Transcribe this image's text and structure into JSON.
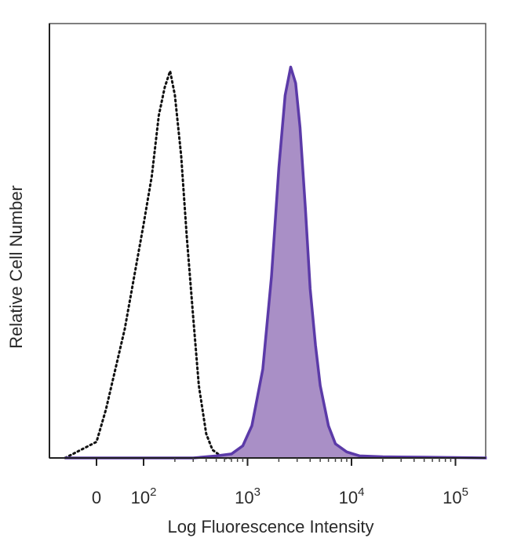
{
  "chart_data": {
    "type": "area",
    "xlabel": "Log Fluorescence Intensity",
    "ylabel": "Relative Cell Number",
    "x_scale": "biexponential",
    "ylim": [
      0,
      100
    ],
    "grid": false,
    "legend": "none",
    "x_ticks": [
      {
        "label": "0",
        "value": 0
      },
      {
        "label": "10",
        "exp": "2",
        "value": 100
      },
      {
        "label": "10",
        "exp": "3",
        "value": 1000
      },
      {
        "label": "10",
        "exp": "4",
        "value": 10000
      },
      {
        "label": "10",
        "exp": "5",
        "value": 100000
      }
    ],
    "series": [
      {
        "style": "dotted-outline",
        "color": "#111111",
        "x": [
          -50,
          0,
          20,
          40,
          60,
          80,
          100,
          120,
          140,
          160,
          180,
          200,
          230,
          260,
          300,
          340,
          400,
          460,
          520,
          600,
          700
        ],
        "y": [
          0,
          4,
          12,
          22,
          32,
          45,
          58,
          70,
          85,
          92,
          96,
          90,
          75,
          55,
          35,
          18,
          6,
          2,
          1,
          0,
          0
        ]
      },
      {
        "style": "filled",
        "color": "#5b3aa8",
        "fill": "#a98fc6",
        "x": [
          -50,
          300,
          500,
          700,
          900,
          1100,
          1400,
          1700,
          2000,
          2300,
          2600,
          2900,
          3200,
          3600,
          4000,
          4500,
          5000,
          6000,
          7000,
          9000,
          12000,
          20000,
          50000,
          200000
        ],
        "y": [
          0,
          0,
          0.5,
          1,
          3,
          8,
          22,
          45,
          72,
          90,
          97,
          93,
          82,
          62,
          42,
          28,
          18,
          8,
          3.5,
          1.5,
          0.5,
          0.3,
          0.2,
          0
        ]
      }
    ]
  }
}
